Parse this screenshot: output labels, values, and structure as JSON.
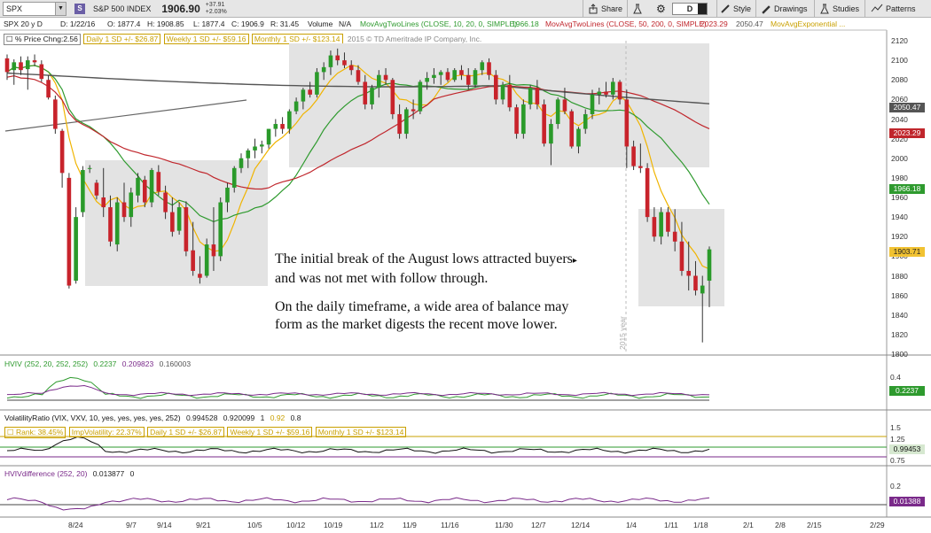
{
  "toolbar": {
    "symbol": "SPX",
    "badge": "S",
    "index_name": "S&P 500 INDEX",
    "last_price": "1906.90",
    "change": "+37.91",
    "change_pct": "+2.03%",
    "share_label": "Share",
    "period": "D",
    "style_label": "Style",
    "drawings_label": "Drawings",
    "studies_label": "Studies",
    "patterns_label": "Patterns"
  },
  "study_bar": {
    "title": "SPX 20 y D",
    "date": "D: 1/22/16",
    "open": "O: 1877.4",
    "high": "H: 1908.85",
    "low": "L: 1877.4",
    "close": "C: 1906.9",
    "rsi": "R: 31.45",
    "volume": "Volume",
    "volume_value": "N/A",
    "ma1": "MovAvgTwoLines (CLOSE, 10, 20, 0, SIMPLE)",
    "ma1_value": "1966.18",
    "ma2": "MovAvgTwoLines (CLOSE, 50, 200, 0, SIMPLE)",
    "ma2_value1": "2023.29",
    "ma2_value2": "2050.47",
    "ma3": "MovAvgExponential ..."
  },
  "sub_bar": {
    "price_chng": "% Price Chng:2.56",
    "daily_sd": "Daily 1 SD +/- $26.87",
    "weekly_sd": "Weekly 1 SD +/- $59.16",
    "monthly_sd": "Monthly 1 SD +/- $123.14",
    "copyright": "2015 © TD Ameritrade IP Company, Inc."
  },
  "price_axis": [
    "2120",
    "2100",
    "2080",
    "2060",
    "2040",
    "2020",
    "2000",
    "1980",
    "1960",
    "1940",
    "1920",
    "1900",
    "1880",
    "1860",
    "1840",
    "1820",
    "1800"
  ],
  "price_tags": [
    {
      "label": "2050.47",
      "color": "#555555"
    },
    {
      "label": "2023.29",
      "color": "#c0262c"
    },
    {
      "label": "1966.18",
      "color": "#2e9a2e"
    },
    {
      "label": "1903.71",
      "color": "#f1c232"
    }
  ],
  "annotation": {
    "line1": "The initial break of the August lows attracted buyers",
    "line2": "and was not met with follow through.",
    "line3": "On the daily timeframe, a wide area of balance may",
    "line4": "form as the market digests the recent move lower."
  },
  "year_marker": "2015 year",
  "hviv": {
    "label": "HVIV (252, 20, 252, 252)",
    "v1": "0.2237",
    "v2": "0.209823",
    "v3": "0.160003",
    "axis": [
      "0.4",
      "0.2"
    ],
    "tag": "0.2237"
  },
  "volratio": {
    "label": "VolatilityRatio (VIX, VXV, 10, yes, yes, yes, yes, 252)",
    "v1": "0.994528",
    "v2": "0.920099",
    "v3": "1",
    "v4": "0.92",
    "v5": "0.8",
    "rank": "Rank: 38.45%",
    "impvol": "ImpVolatility: 22.37%",
    "daily_sd": "Daily 1 SD +/- $26.87",
    "weekly_sd": "Weekly 1 SD +/- $59.16",
    "monthly_sd": "Monthly 1 SD +/- $123.14",
    "axis": [
      "1.5",
      "1.25",
      "0.75"
    ],
    "tag": "0.99453"
  },
  "hvivdiff": {
    "label": "HVIVdifference (252, 20)",
    "v1": "0.013877",
    "v2": "0",
    "axis": [
      "0.2",
      "0"
    ],
    "tag": "0.01388"
  },
  "x_axis": [
    "8/24",
    "9/7",
    "9/14",
    "9/21",
    "10/5",
    "10/12",
    "10/19",
    "11/2",
    "11/9",
    "11/16",
    "11/30",
    "12/7",
    "12/14",
    "1/4",
    "1/11",
    "1/18",
    "2/1",
    "2/8",
    "2/15",
    "2/29"
  ],
  "colors": {
    "up": "#2a9a2a",
    "down": "#c8232b",
    "ma_fast": "#f0b400",
    "ma_mid": "#2e9a2e",
    "ma_slow": "#c0262c",
    "ma_200": "#555555",
    "balance_box": "#e3e3e3"
  }
}
